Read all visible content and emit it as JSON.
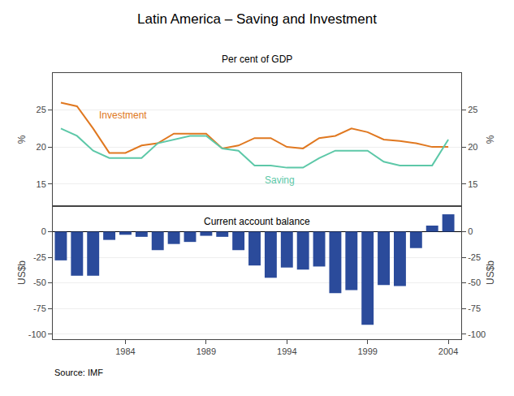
{
  "chart_data": [
    {
      "type": "line",
      "title": "Latin America – Saving and Investment",
      "subtitle": "Per cent of GDP",
      "x": [
        1980,
        1981,
        1982,
        1983,
        1984,
        1985,
        1986,
        1987,
        1988,
        1989,
        1990,
        1991,
        1992,
        1993,
        1994,
        1995,
        1996,
        1997,
        1998,
        1999,
        2000,
        2001,
        2002,
        2003,
        2004
      ],
      "series": [
        {
          "name": "Investment",
          "color": "#E07820",
          "values": [
            26.0,
            25.5,
            22.5,
            19.2,
            19.2,
            20.2,
            20.5,
            21.8,
            21.8,
            21.8,
            19.8,
            20.2,
            21.2,
            21.2,
            20.0,
            19.8,
            21.2,
            21.5,
            22.5,
            22.0,
            21.0,
            20.8,
            20.5,
            20.0,
            20.0
          ]
        },
        {
          "name": "Saving",
          "color": "#5DC8A8",
          "values": [
            22.5,
            21.5,
            19.5,
            18.5,
            18.5,
            18.5,
            20.5,
            21.0,
            21.5,
            21.5,
            19.8,
            19.5,
            17.5,
            17.5,
            17.2,
            17.2,
            18.5,
            19.5,
            19.5,
            19.5,
            18.0,
            17.5,
            17.5,
            17.5,
            21.0
          ]
        }
      ],
      "xlim": [
        1979.5,
        2004.8
      ],
      "ylim": [
        12,
        30
      ],
      "yticks": [
        15,
        20,
        25
      ],
      "y2lim": [
        12,
        30
      ],
      "y2ticks": [
        15,
        20,
        25
      ],
      "ylabel": "%",
      "y2label": "%",
      "grid": true,
      "tick_labels": "y"
    },
    {
      "type": "bar",
      "x": [
        1980,
        1981,
        1982,
        1983,
        1984,
        1985,
        1986,
        1987,
        1988,
        1989,
        1990,
        1991,
        1992,
        1993,
        1994,
        1995,
        1996,
        1997,
        1998,
        1999,
        2000,
        2001,
        2002,
        2003,
        2004
      ],
      "values": [
        -28,
        -43,
        -43,
        -8,
        -3,
        -5,
        -18,
        -12,
        -10,
        -4,
        -5,
        -18,
        -33,
        -45,
        -35,
        -37,
        -34,
        -60,
        -57,
        -91,
        -52,
        -53,
        -16,
        6,
        17
      ],
      "color": "#2B4B9B",
      "xlim": [
        1979.5,
        2004.8
      ],
      "xticks": [
        1984,
        1989,
        1994,
        1999,
        2004
      ],
      "ylim": [
        -105,
        25
      ],
      "yticks": [
        -100,
        -75,
        -50,
        -25,
        0
      ],
      "y2lim": [
        -105,
        25
      ],
      "y2ticks": [
        -100,
        -75,
        -50,
        -25,
        0
      ],
      "ylabel": "US$b",
      "y2label": "US$b",
      "grid": true,
      "annotations": [
        "Current account balance",
        "Source: IMF"
      ]
    }
  ]
}
